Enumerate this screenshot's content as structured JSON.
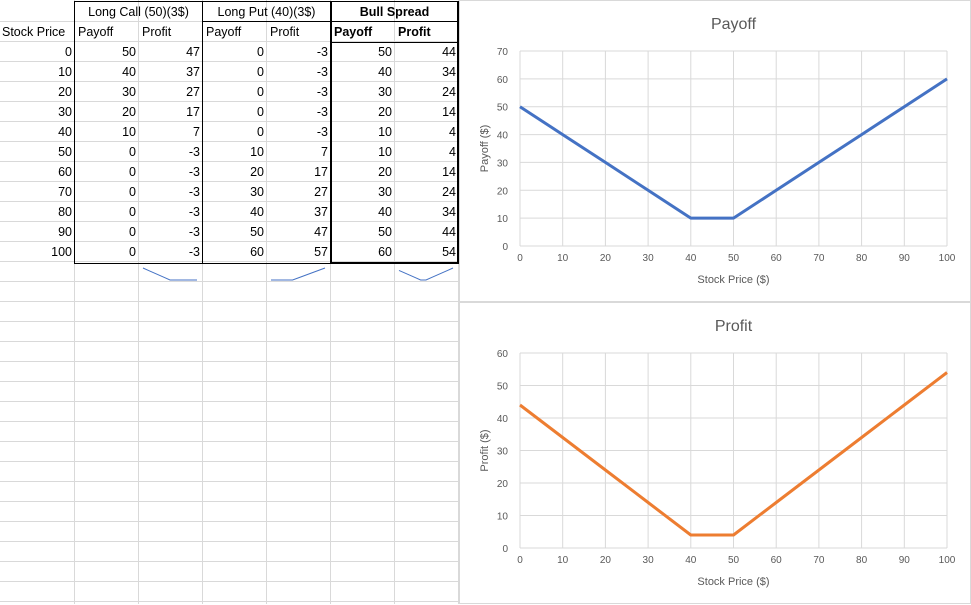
{
  "headers": {
    "long_call": "Long Call (50)(3$)",
    "long_put": "Long Put (40)(3$)",
    "bull_spread": "Bull Spread",
    "stock_price": "Stock Price",
    "payoff": "Payoff",
    "profit": "Profit"
  },
  "rows": [
    {
      "stock": "0",
      "lc_payoff": "50",
      "lc_profit": "47",
      "lp_payoff": "0",
      "lp_profit": "-3",
      "bs_payoff": "50",
      "bs_profit": "44"
    },
    {
      "stock": "10",
      "lc_payoff": "40",
      "lc_profit": "37",
      "lp_payoff": "0",
      "lp_profit": "-3",
      "bs_payoff": "40",
      "bs_profit": "34"
    },
    {
      "stock": "20",
      "lc_payoff": "30",
      "lc_profit": "27",
      "lp_payoff": "0",
      "lp_profit": "-3",
      "bs_payoff": "30",
      "bs_profit": "24"
    },
    {
      "stock": "30",
      "lc_payoff": "20",
      "lc_profit": "17",
      "lp_payoff": "0",
      "lp_profit": "-3",
      "bs_payoff": "20",
      "bs_profit": "14"
    },
    {
      "stock": "40",
      "lc_payoff": "10",
      "lc_profit": "7",
      "lp_payoff": "0",
      "lp_profit": "-3",
      "bs_payoff": "10",
      "bs_profit": "4"
    },
    {
      "stock": "50",
      "lc_payoff": "0",
      "lc_profit": "-3",
      "lp_payoff": "10",
      "lp_profit": "7",
      "bs_payoff": "10",
      "bs_profit": "4"
    },
    {
      "stock": "60",
      "lc_payoff": "0",
      "lc_profit": "-3",
      "lp_payoff": "20",
      "lp_profit": "17",
      "bs_payoff": "20",
      "bs_profit": "14"
    },
    {
      "stock": "70",
      "lc_payoff": "0",
      "lc_profit": "-3",
      "lp_payoff": "30",
      "lp_profit": "27",
      "bs_payoff": "30",
      "bs_profit": "24"
    },
    {
      "stock": "80",
      "lc_payoff": "0",
      "lc_profit": "-3",
      "lp_payoff": "40",
      "lp_profit": "37",
      "bs_payoff": "40",
      "bs_profit": "34"
    },
    {
      "stock": "90",
      "lc_payoff": "0",
      "lc_profit": "-3",
      "lp_payoff": "50",
      "lp_profit": "47",
      "bs_payoff": "50",
      "bs_profit": "44"
    },
    {
      "stock": "100",
      "lc_payoff": "0",
      "lc_profit": "-3",
      "lp_payoff": "60",
      "lp_profit": "57",
      "bs_payoff": "60",
      "bs_profit": "54"
    }
  ],
  "sparklines": [
    {
      "values": [
        47,
        37,
        27,
        17,
        7,
        -3,
        -3,
        -3,
        -3,
        -3,
        -3
      ],
      "color": "#4472c4"
    },
    {
      "values": [
        -3,
        -3,
        -3,
        -3,
        -3,
        7,
        17,
        27,
        37,
        47,
        57
      ],
      "color": "#4472c4"
    },
    {
      "values": [
        44,
        34,
        24,
        14,
        4,
        4,
        14,
        24,
        34,
        44,
        54
      ],
      "color": "#4472c4"
    }
  ],
  "chart_data": [
    {
      "type": "line",
      "title": "Payoff",
      "xlabel": "Stock Price ($)",
      "ylabel": "Payoff ($)",
      "x": [
        0,
        10,
        20,
        30,
        40,
        50,
        60,
        70,
        80,
        90,
        100
      ],
      "series": [
        {
          "values": [
            50,
            40,
            30,
            20,
            10,
            10,
            20,
            30,
            40,
            50,
            60
          ],
          "color": "#4472c4"
        }
      ],
      "xlim": [
        0,
        100
      ],
      "xticks": [
        0,
        10,
        20,
        30,
        40,
        50,
        60,
        70,
        80,
        90,
        100
      ],
      "ylim": [
        0,
        70
      ],
      "yticks": [
        0,
        10,
        20,
        30,
        40,
        50,
        60,
        70
      ],
      "grid": true
    },
    {
      "type": "line",
      "title": "Profit",
      "xlabel": "Stock Price ($)",
      "ylabel": "Profit ($)",
      "x": [
        0,
        10,
        20,
        30,
        40,
        50,
        60,
        70,
        80,
        90,
        100
      ],
      "series": [
        {
          "values": [
            44,
            34,
            24,
            14,
            4,
            4,
            14,
            24,
            34,
            44,
            54
          ],
          "color": "#ed7d31"
        }
      ],
      "xlim": [
        0,
        100
      ],
      "xticks": [
        0,
        10,
        20,
        30,
        40,
        50,
        60,
        70,
        80,
        90,
        100
      ],
      "ylim": [
        0,
        60
      ],
      "yticks": [
        0,
        10,
        20,
        30,
        40,
        50,
        60
      ],
      "grid": true
    }
  ]
}
